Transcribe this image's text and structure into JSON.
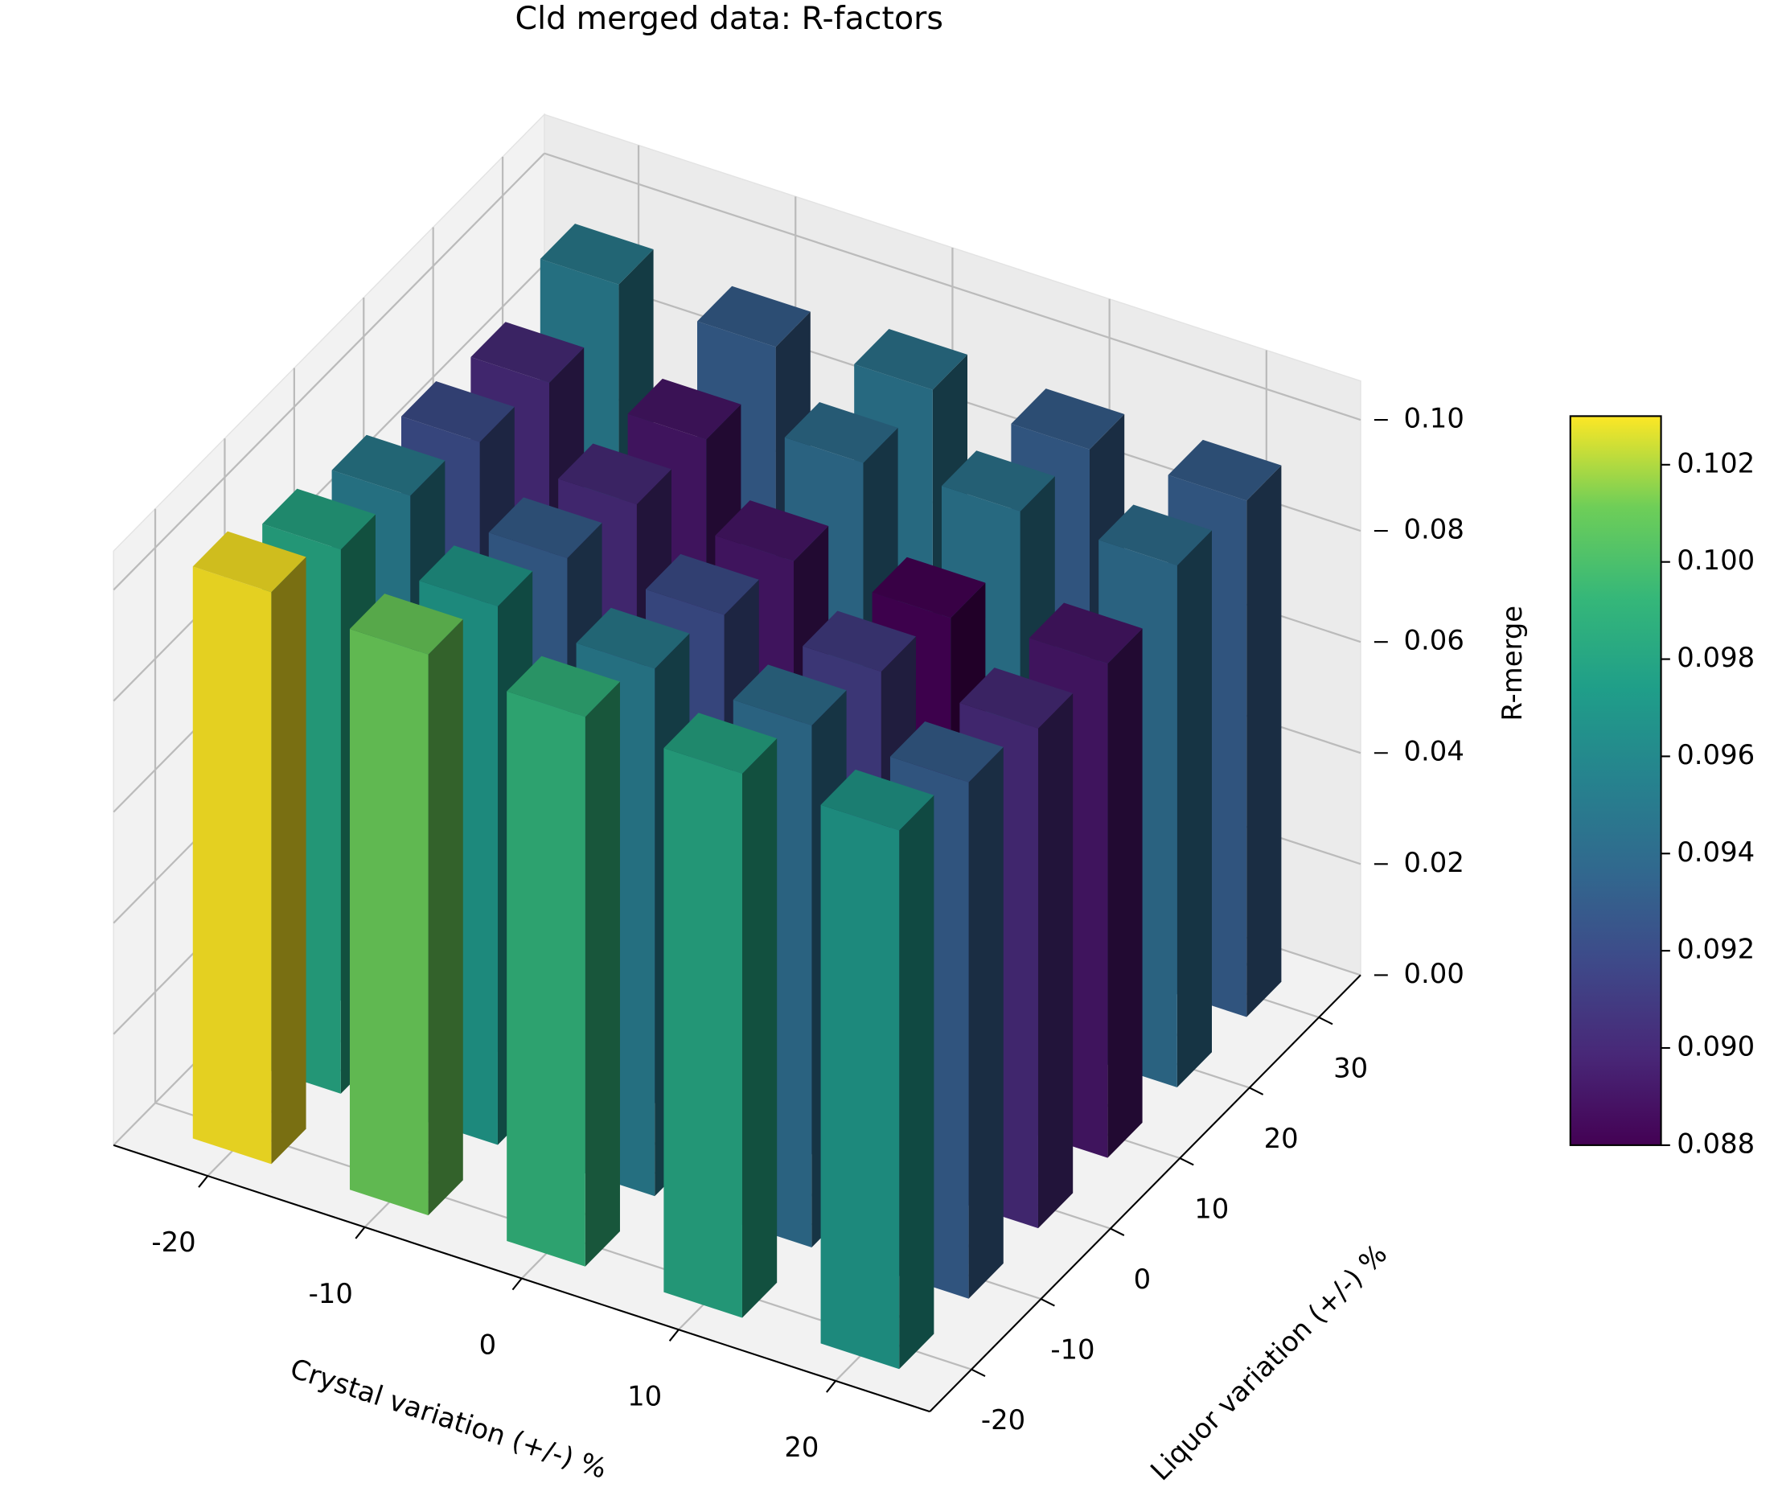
{
  "chart_data": {
    "type": "bar3d",
    "title": "Cld merged data: R-factors",
    "xlabel": "Crystal variation (+/-) %",
    "ylabel": "Liquor variation (+/-) %",
    "zlabel": "R-merge",
    "x": [
      -20,
      -10,
      0,
      10,
      20
    ],
    "y": [
      -20,
      -10,
      0,
      10,
      20,
      30
    ],
    "values": [
      [
        0.103,
        0.098,
        0.095,
        0.092,
        0.09,
        0.095
      ],
      [
        0.101,
        0.097,
        0.093,
        0.09,
        0.089,
        0.093
      ],
      [
        0.099,
        0.095,
        0.092,
        0.089,
        0.094,
        0.0945
      ],
      [
        0.098,
        0.094,
        0.091,
        0.088,
        0.0945,
        0.093
      ],
      [
        0.097,
        0.093,
        0.09,
        0.089,
        0.094,
        0.093
      ]
    ],
    "xlim": [
      -26,
      26
    ],
    "ylim": [
      -26,
      36
    ],
    "zlim": [
      0,
      0.107
    ],
    "xticks": [
      -20,
      -10,
      0,
      10,
      20
    ],
    "yticks": [
      -20,
      -10,
      0,
      10,
      20,
      30
    ],
    "zticks": [
      {
        "value": 0,
        "label": "0.00"
      },
      0.02,
      0.04,
      0.06,
      0.08,
      {
        "value": 0.1,
        "label": "0.10"
      }
    ],
    "colormap": "viridis",
    "clim": [
      0.088,
      0.103
    ],
    "cticks": [
      0.088,
      {
        "value": 0.09,
        "label": "0.090"
      },
      0.092,
      0.094,
      0.096,
      0.098,
      {
        "value": 0.1,
        "label": "0.100"
      },
      0.102
    ],
    "grid": true
  }
}
